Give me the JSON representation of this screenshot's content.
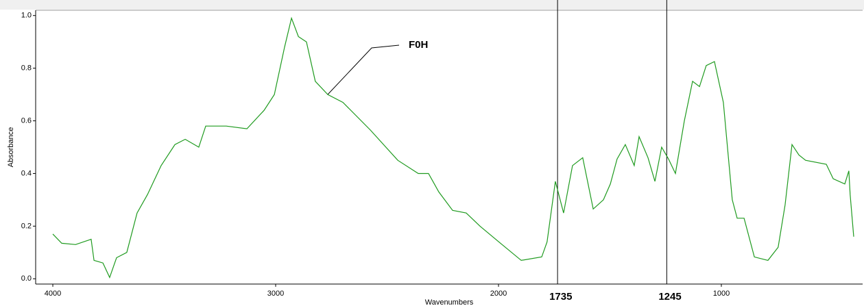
{
  "chart_data": {
    "type": "line",
    "xlabel": "Wavenumbers",
    "ylabel": "Absorbance",
    "annotation": "F0H",
    "xlim": [
      4077,
      366
    ],
    "ylim": [
      -0.02,
      1.02
    ],
    "xticks": [
      4000,
      3000,
      2000,
      1000
    ],
    "yticks": [
      {
        "value": 0,
        "label": "0.0"
      },
      0.2,
      0.4,
      0.6,
      0.8,
      {
        "value": 1,
        "label": "1.0"
      }
    ],
    "markers": [
      1735,
      1245
    ],
    "series": [
      {
        "color": "#1e9a1e",
        "x": [
          4000,
          3960,
          3898,
          3828,
          3815,
          3775,
          3745,
          3714,
          3668,
          3622,
          3575,
          3514,
          3452,
          3406,
          3345,
          3314,
          3222,
          3129,
          3052,
          3006,
          2960,
          2929,
          2898,
          2862,
          2822,
          2766,
          2698,
          2575,
          2452,
          2360,
          2314,
          2268,
          2206,
          2145,
          2083,
          1991,
          1898,
          1806,
          1782,
          1745,
          1708,
          1668,
          1622,
          1575,
          1529,
          1498,
          1468,
          1431,
          1391,
          1369,
          1329,
          1298,
          1268,
          1237,
          1206,
          1166,
          1129,
          1098,
          1068,
          1031,
          991,
          951,
          929,
          898,
          852,
          791,
          745,
          714,
          683,
          652,
          622,
          529,
          498,
          446,
          428,
          422,
          406
        ],
        "values": [
          0.17,
          0.135,
          0.13,
          0.15,
          0.07,
          0.06,
          0.005,
          0.08,
          0.1,
          0.25,
          0.32,
          0.43,
          0.51,
          0.53,
          0.5,
          0.58,
          0.58,
          0.57,
          0.64,
          0.7,
          0.88,
          0.99,
          0.92,
          0.9,
          0.75,
          0.7,
          0.67,
          0.565,
          0.45,
          0.4,
          0.4,
          0.33,
          0.26,
          0.25,
          0.2,
          0.135,
          0.07,
          0.083,
          0.14,
          0.37,
          0.25,
          0.43,
          0.46,
          0.265,
          0.3,
          0.36,
          0.455,
          0.51,
          0.43,
          0.54,
          0.46,
          0.37,
          0.5,
          0.455,
          0.4,
          0.6,
          0.75,
          0.73,
          0.81,
          0.825,
          0.67,
          0.3,
          0.23,
          0.23,
          0.083,
          0.07,
          0.12,
          0.28,
          0.51,
          0.47,
          0.45,
          0.435,
          0.38,
          0.36,
          0.41,
          0.32,
          0.16
        ]
      }
    ]
  }
}
